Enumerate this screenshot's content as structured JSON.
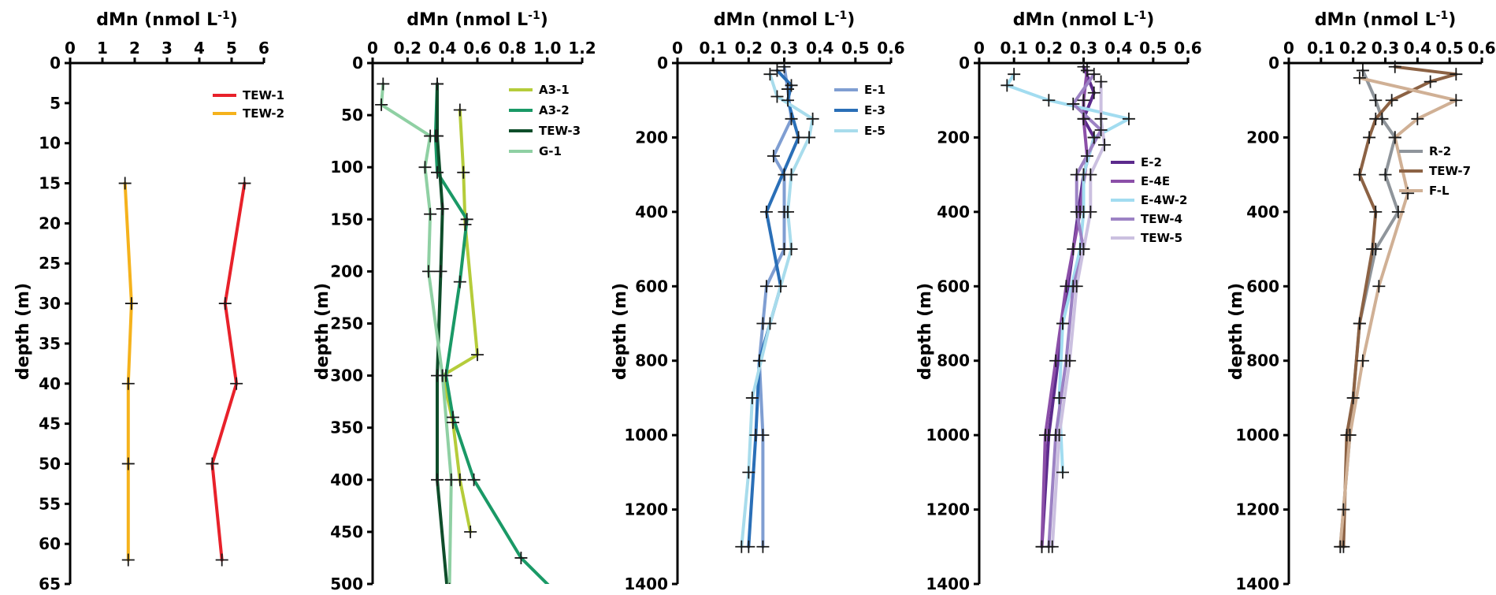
{
  "chart_data": [
    {
      "type": "line",
      "xlabel": "dMn (nmol L-1)",
      "ylabel": "depth (m)",
      "xlim": [
        0,
        6
      ],
      "ylim": [
        65,
        0
      ],
      "x_ticks": [
        "0",
        "1",
        "2",
        "3",
        "4",
        "5",
        "6"
      ],
      "x_tick_values": [
        0,
        1,
        2,
        3,
        4,
        5,
        6
      ],
      "y_ticks": [
        "0",
        "5",
        "10",
        "15",
        "20",
        "25",
        "30",
        "35",
        "40",
        "45",
        "50",
        "55",
        "60",
        "65"
      ],
      "y_tick_values": [
        0,
        5,
        10,
        15,
        20,
        25,
        30,
        35,
        40,
        45,
        50,
        55,
        60,
        65
      ],
      "legend_position": "top-right",
      "series": [
        {
          "name": "TEW-1",
          "color": "#e8212a",
          "points": [
            [
              5.4,
              15
            ],
            [
              4.8,
              30
            ],
            [
              5.15,
              40
            ],
            [
              4.4,
              50
            ],
            [
              4.7,
              62
            ]
          ]
        },
        {
          "name": "TEW-2",
          "color": "#f5b21c",
          "points": [
            [
              1.7,
              15
            ],
            [
              1.9,
              30
            ],
            [
              1.8,
              40
            ],
            [
              1.8,
              50
            ],
            [
              1.8,
              62
            ]
          ]
        }
      ]
    },
    {
      "type": "line",
      "xlabel": "dMn (nmol L-1)",
      "ylabel": "depth (m)",
      "xlim": [
        0,
        1.2
      ],
      "ylim": [
        500,
        0
      ],
      "x_ticks": [
        "0",
        "0.2",
        "0.4",
        "0.6",
        "0.8",
        "1.0",
        "1.2"
      ],
      "x_tick_values": [
        0,
        0.2,
        0.4,
        0.6,
        0.8,
        1.0,
        1.2
      ],
      "y_ticks": [
        "0",
        "50",
        "100",
        "150",
        "200",
        "250",
        "300",
        "350",
        "400",
        "450",
        "500"
      ],
      "y_tick_values": [
        0,
        50,
        100,
        150,
        200,
        250,
        300,
        350,
        400,
        450,
        500
      ],
      "legend_position": "top-right",
      "series": [
        {
          "name": "A3-1",
          "color": "#b5cc3a",
          "points": [
            [
              0.5,
              45
            ],
            [
              0.52,
              105
            ],
            [
              0.53,
              155
            ],
            [
              0.6,
              280
            ],
            [
              0.4,
              300
            ],
            [
              0.46,
              345
            ],
            [
              0.5,
              400
            ],
            [
              0.56,
              450
            ]
          ]
        },
        {
          "name": "A3-2",
          "color": "#1a9966",
          "points": [
            [
              0.37,
              20
            ],
            [
              0.36,
              70
            ],
            [
              0.37,
              105
            ],
            [
              0.54,
              150
            ],
            [
              0.5,
              210
            ],
            [
              0.42,
              300
            ],
            [
              0.46,
              340
            ],
            [
              0.58,
              400
            ],
            [
              0.85,
              475
            ],
            [
              1.12,
              520
            ]
          ]
        },
        {
          "name": "TEW-3",
          "color": "#0e4d2a",
          "points": [
            [
              0.37,
              20
            ],
            [
              0.37,
              70
            ],
            [
              0.4,
              140
            ],
            [
              0.39,
              200
            ],
            [
              0.37,
              300
            ],
            [
              0.37,
              400
            ],
            [
              0.43,
              510
            ]
          ]
        },
        {
          "name": "G-1",
          "color": "#8fd0a3",
          "points": [
            [
              0.06,
              20
            ],
            [
              0.05,
              40
            ],
            [
              0.33,
              70
            ],
            [
              0.3,
              100
            ],
            [
              0.33,
              145
            ],
            [
              0.32,
              200
            ],
            [
              0.4,
              300
            ],
            [
              0.45,
              400
            ],
            [
              0.44,
              505
            ]
          ]
        }
      ]
    },
    {
      "type": "line",
      "xlabel": "dMn (nmol L-1)",
      "ylabel": "depth (m)",
      "xlim": [
        0,
        0.6
      ],
      "ylim": [
        1400,
        0
      ],
      "x_ticks": [
        "0",
        "0.1",
        "0.2",
        "0.3",
        "0.4",
        "0.5",
        "0.6"
      ],
      "x_tick_values": [
        0,
        0.1,
        0.2,
        0.3,
        0.4,
        0.5,
        0.6
      ],
      "y_ticks": [
        "0",
        "200",
        "400",
        "600",
        "800",
        "1000",
        "1200",
        "1400"
      ],
      "y_tick_values": [
        0,
        200,
        400,
        600,
        800,
        1000,
        1200,
        1400
      ],
      "legend_position": "top-right",
      "series": [
        {
          "name": "E-1",
          "color": "#7f9ed2",
          "points": [
            [
              0.3,
              10
            ],
            [
              0.31,
              70
            ],
            [
              0.32,
              150
            ],
            [
              0.27,
              250
            ],
            [
              0.3,
              300
            ],
            [
              0.3,
              400
            ],
            [
              0.3,
              500
            ],
            [
              0.25,
              600
            ],
            [
              0.24,
              700
            ],
            [
              0.23,
              800
            ],
            [
              0.24,
              1000
            ],
            [
              0.24,
              1300
            ]
          ]
        },
        {
          "name": "E-3",
          "color": "#2a6fb7",
          "points": [
            [
              0.28,
              20
            ],
            [
              0.32,
              60
            ],
            [
              0.31,
              100
            ],
            [
              0.34,
              200
            ],
            [
              0.25,
              400
            ],
            [
              0.29,
              600
            ],
            [
              0.23,
              800
            ],
            [
              0.22,
              1000
            ],
            [
              0.2,
              1300
            ]
          ]
        },
        {
          "name": "E-5",
          "color": "#a8dcec",
          "points": [
            [
              0.26,
              30
            ],
            [
              0.28,
              90
            ],
            [
              0.38,
              150
            ],
            [
              0.37,
              200
            ],
            [
              0.32,
              300
            ],
            [
              0.31,
              400
            ],
            [
              0.32,
              500
            ],
            [
              0.26,
              700
            ],
            [
              0.21,
              900
            ],
            [
              0.2,
              1100
            ],
            [
              0.18,
              1300
            ]
          ]
        }
      ]
    },
    {
      "type": "line",
      "xlabel": "dMn (nmol L-1)",
      "ylabel": "depth (m)",
      "xlim": [
        0,
        0.6
      ],
      "ylim": [
        1400,
        0
      ],
      "x_ticks": [
        "0",
        "0.1",
        "0.2",
        "0.3",
        "0.4",
        "0.5",
        "0.6"
      ],
      "x_tick_values": [
        0,
        0.1,
        0.2,
        0.3,
        0.4,
        0.5,
        0.6
      ],
      "y_ticks": [
        "0",
        "200",
        "400",
        "600",
        "800",
        "1000",
        "1200",
        "1400"
      ],
      "y_tick_values": [
        0,
        200,
        400,
        600,
        800,
        1000,
        1200,
        1400
      ],
      "legend_position": "right",
      "series": [
        {
          "name": "E-2",
          "color": "#5c2a8c",
          "points": [
            [
              0.3,
              10
            ],
            [
              0.33,
              80
            ],
            [
              0.3,
              150
            ],
            [
              0.33,
              200
            ],
            [
              0.3,
              300
            ],
            [
              0.27,
              500
            ],
            [
              0.24,
              700
            ],
            [
              0.2,
              1000
            ],
            [
              0.18,
              1300
            ]
          ]
        },
        {
          "name": "E-4E",
          "color": "#8b4fa8",
          "points": [
            [
              0.31,
              20
            ],
            [
              0.3,
              100
            ],
            [
              0.3,
              150
            ],
            [
              0.31,
              250
            ],
            [
              0.29,
              400
            ],
            [
              0.25,
              600
            ],
            [
              0.22,
              800
            ],
            [
              0.19,
              1000
            ],
            [
              0.18,
              1300
            ]
          ]
        },
        {
          "name": "E-4W-2",
          "color": "#a2dcf0",
          "points": [
            [
              0.1,
              30
            ],
            [
              0.08,
              60
            ],
            [
              0.2,
              100
            ],
            [
              0.43,
              150
            ],
            [
              0.33,
              200
            ],
            [
              0.3,
              300
            ],
            [
              0.3,
              400
            ],
            [
              0.29,
              500
            ],
            [
              0.24,
              700
            ],
            [
              0.23,
              900
            ],
            [
              0.24,
              1100
            ]
          ]
        },
        {
          "name": "TEW-4",
          "color": "#9c82c4",
          "points": [
            [
              0.33,
              30
            ],
            [
              0.27,
              110
            ],
            [
              0.35,
              180
            ],
            [
              0.28,
              300
            ],
            [
              0.28,
              400
            ],
            [
              0.3,
              500
            ],
            [
              0.27,
              600
            ],
            [
              0.25,
              800
            ],
            [
              0.22,
              1000
            ],
            [
              0.2,
              1300
            ]
          ]
        },
        {
          "name": "TEW-5",
          "color": "#cbc0e0",
          "points": [
            [
              0.35,
              50
            ],
            [
              0.35,
              150
            ],
            [
              0.36,
              220
            ],
            [
              0.32,
              300
            ],
            [
              0.32,
              400
            ],
            [
              0.28,
              600
            ],
            [
              0.26,
              800
            ],
            [
              0.23,
              1000
            ],
            [
              0.21,
              1300
            ]
          ]
        }
      ]
    },
    {
      "type": "line",
      "xlabel": "dMn (nmol L-1)",
      "ylabel": "depth (m)",
      "xlim": [
        0,
        0.6
      ],
      "ylim": [
        1400,
        0
      ],
      "x_ticks": [
        "0",
        "0.1",
        "0.2",
        "0.3",
        "0.4",
        "0.5",
        "0.6"
      ],
      "x_tick_values": [
        0,
        0.1,
        0.2,
        0.3,
        0.4,
        0.5,
        0.6
      ],
      "y_ticks": [
        "0",
        "200",
        "400",
        "600",
        "800",
        "1000",
        "1200",
        "1400"
      ],
      "y_tick_values": [
        0,
        200,
        400,
        600,
        800,
        1000,
        1200,
        1400
      ],
      "legend_position": "right",
      "series": [
        {
          "name": "R-2",
          "color": "#8f959b",
          "points": [
            [
              0.23,
              20
            ],
            [
              0.27,
              100
            ],
            [
              0.29,
              150
            ],
            [
              0.33,
              200
            ],
            [
              0.3,
              300
            ],
            [
              0.34,
              400
            ],
            [
              0.27,
              500
            ],
            [
              0.22,
              700
            ],
            [
              0.19,
              1000
            ],
            [
              0.16,
              1300
            ]
          ]
        },
        {
          "name": "TEW-7",
          "color": "#8c6244",
          "points": [
            [
              0.33,
              10
            ],
            [
              0.52,
              30
            ],
            [
              0.44,
              50
            ],
            [
              0.32,
              100
            ],
            [
              0.27,
              150
            ],
            [
              0.25,
              200
            ],
            [
              0.22,
              300
            ],
            [
              0.27,
              400
            ],
            [
              0.26,
              500
            ],
            [
              0.22,
              700
            ],
            [
              0.2,
              900
            ],
            [
              0.18,
              1000
            ],
            [
              0.17,
              1300
            ]
          ]
        },
        {
          "name": "F-L",
          "color": "#d0b095",
          "points": [
            [
              0.22,
              40
            ],
            [
              0.52,
              100
            ],
            [
              0.4,
              150
            ],
            [
              0.33,
              200
            ],
            [
              0.37,
              350
            ],
            [
              0.28,
              600
            ],
            [
              0.23,
              800
            ],
            [
              0.19,
              1000
            ],
            [
              0.17,
              1200
            ],
            [
              0.16,
              1300
            ]
          ]
        }
      ]
    }
  ]
}
